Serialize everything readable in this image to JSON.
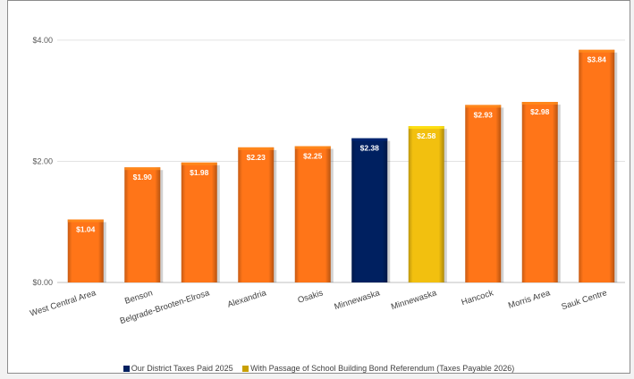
{
  "chart_data": {
    "type": "bar",
    "title": "",
    "xlabel": "",
    "ylabel": "",
    "ylim": [
      0,
      4.5
    ],
    "yticks": [
      "$0.00",
      "$2.00",
      "$4.00"
    ],
    "ytick_values": [
      0,
      2,
      4
    ],
    "grid": true,
    "legend_position": "bottom",
    "categories": [
      "West Central Area",
      "Benson",
      "Belgrade-Brooten-Elrosa",
      "Alexandria",
      "Osakis",
      "Minnewaska",
      "Minnewaska",
      "Hancock",
      "Morris Area",
      "Sauk Centre"
    ],
    "values": [
      1.04,
      1.9,
      1.98,
      2.23,
      2.25,
      2.38,
      2.58,
      2.93,
      2.98,
      3.84
    ],
    "data_labels": [
      "$1.04",
      "$1.90",
      "$1.98",
      "$2.23",
      "$2.25",
      "$2.38",
      "$2.58",
      "$2.93",
      "$2.98",
      "$3.84"
    ],
    "bar_colors": [
      "#ff7518",
      "#ff7518",
      "#ff7518",
      "#ff7518",
      "#ff7518",
      "#002060",
      "#f2c00f",
      "#ff7518",
      "#ff7518",
      "#ff7518"
    ],
    "legend": [
      {
        "label": "Our District Taxes Paid 2025",
        "color": "#002060"
      },
      {
        "label": "With Passage of School Building Bond Referendum (Taxes Payable 2026)",
        "color": "#c9a000"
      }
    ]
  }
}
